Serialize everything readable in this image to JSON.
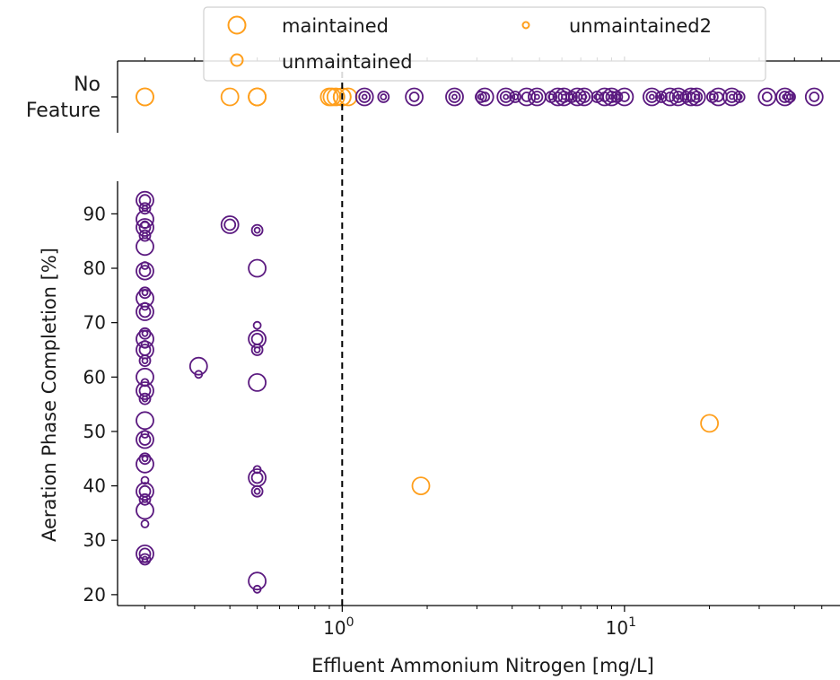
{
  "chart_data": {
    "type": "scatter",
    "xscale": "log",
    "xlabel": "Effluent Ammonium Nitrogen [mg/L]",
    "ylabel": "Aeration Phase Completion [%]",
    "threshold_x": 1,
    "xticks": [
      {
        "base": "10",
        "exp": "0",
        "value": 1
      },
      {
        "base": "10",
        "exp": "1",
        "value": 10
      }
    ],
    "yticks": [
      20,
      30,
      40,
      50,
      60,
      70,
      80,
      90
    ],
    "ylim": [
      18,
      96
    ],
    "xlim": [
      0.16,
      58
    ],
    "top_panel_label": [
      "No",
      "Feature"
    ],
    "colors": {
      "orange": "#ff9f1c",
      "purple": "#5b1a80"
    },
    "legend": [
      {
        "label": "maintained",
        "size": "large"
      },
      {
        "label": "unmaintained2",
        "size": "small"
      },
      {
        "label": "unmaintained",
        "size": "medium"
      }
    ],
    "no_feature_series": [
      {
        "color": "orange",
        "x": [
          0.2,
          0.2,
          0.4,
          0.5,
          0.5,
          0.5,
          0.9,
          0.92,
          0.95,
          1.0,
          1.0,
          1.05
        ]
      },
      {
        "color": "purple",
        "x": [
          1.2,
          1.4,
          1.8,
          2.5,
          3.1,
          3.2,
          3.8,
          4.1,
          4.5,
          4.9,
          5.5,
          5.8,
          6.1,
          6.5,
          6.8,
          7.2,
          8.0,
          8.5,
          9.0,
          9.4,
          10.0,
          12.5,
          13.5,
          14.5,
          15.5,
          16.5,
          17.2,
          18.0,
          20.5,
          21.5,
          24.0,
          25.5,
          32.0,
          37.0,
          38.5,
          47.0
        ]
      }
    ],
    "series": [
      {
        "color": "purple",
        "points": [
          [
            0.2,
            92.5
          ],
          [
            0.2,
            91.0
          ],
          [
            0.2,
            89.0
          ],
          [
            0.2,
            88.0
          ],
          [
            0.2,
            87.5
          ],
          [
            0.2,
            86.0
          ],
          [
            0.2,
            84.0
          ],
          [
            0.2,
            80.5
          ],
          [
            0.2,
            79.5
          ],
          [
            0.2,
            75.5
          ],
          [
            0.2,
            74.5
          ],
          [
            0.2,
            73.0
          ],
          [
            0.2,
            72.0
          ],
          [
            0.2,
            68.0
          ],
          [
            0.2,
            67.0
          ],
          [
            0.2,
            66.0
          ],
          [
            0.2,
            65.0
          ],
          [
            0.2,
            63.0
          ],
          [
            0.2,
            60.0
          ],
          [
            0.2,
            59.0
          ],
          [
            0.2,
            57.5
          ],
          [
            0.2,
            56.0
          ],
          [
            0.2,
            52.0
          ],
          [
            0.2,
            49.5
          ],
          [
            0.2,
            48.5
          ],
          [
            0.2,
            45.0
          ],
          [
            0.2,
            44.0
          ],
          [
            0.2,
            41.0
          ],
          [
            0.2,
            39.0
          ],
          [
            0.2,
            37.5
          ],
          [
            0.2,
            35.5
          ],
          [
            0.2,
            33.0
          ],
          [
            0.2,
            27.5
          ],
          [
            0.2,
            26.5
          ],
          [
            0.31,
            62.0
          ],
          [
            0.31,
            60.5
          ],
          [
            0.4,
            88.0
          ],
          [
            0.5,
            87.0
          ],
          [
            0.5,
            80.0
          ],
          [
            0.5,
            69.5
          ],
          [
            0.5,
            67.0
          ],
          [
            0.5,
            65.0
          ],
          [
            0.5,
            59.0
          ],
          [
            0.5,
            43.0
          ],
          [
            0.5,
            41.5
          ],
          [
            0.5,
            39.0
          ],
          [
            0.5,
            22.5
          ],
          [
            0.5,
            21.0
          ]
        ]
      },
      {
        "color": "orange",
        "points": [
          [
            1.9,
            40.0
          ],
          [
            20.0,
            51.5
          ]
        ]
      }
    ]
  }
}
